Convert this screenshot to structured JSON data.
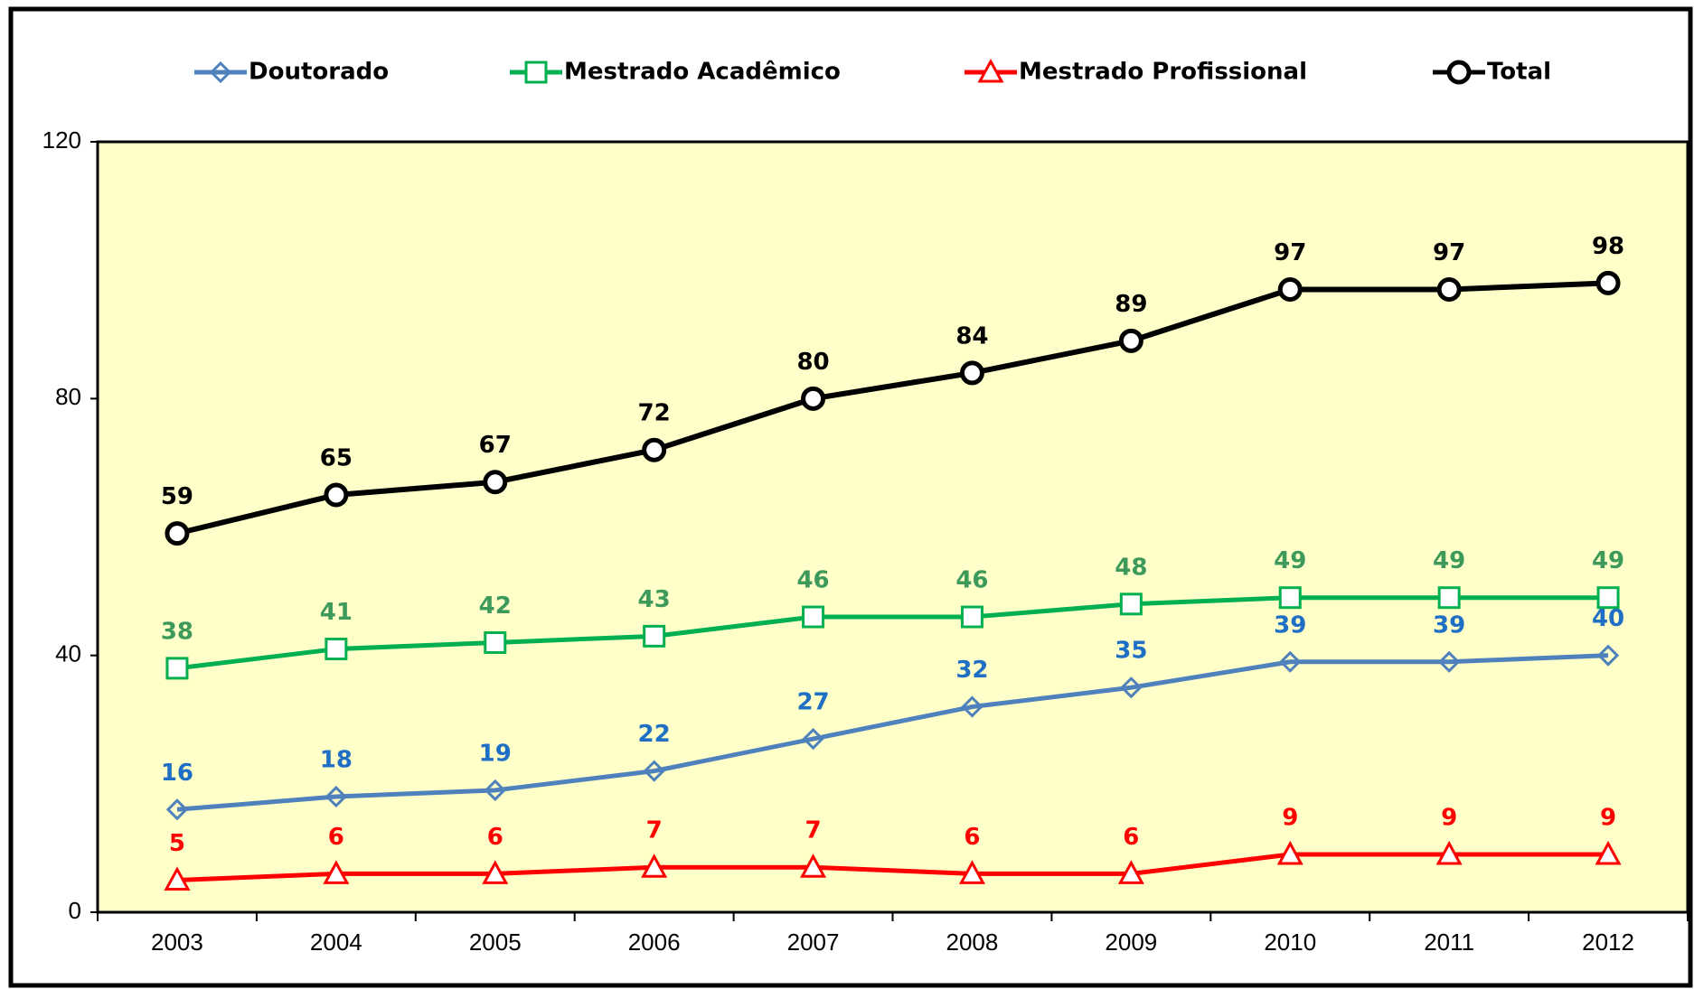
{
  "chart_data": {
    "type": "line",
    "categories": [
      "2003",
      "2004",
      "2005",
      "2006",
      "2007",
      "2008",
      "2009",
      "2010",
      "2011",
      "2012"
    ],
    "series": [
      {
        "name": "Doutorado",
        "color": "#4f81bd",
        "label_color": "#1f6fc5",
        "marker": "diamond",
        "values": [
          16,
          18,
          19,
          22,
          27,
          32,
          35,
          39,
          39,
          40
        ]
      },
      {
        "name": "Mestrado Acadêmico",
        "color": "#00b050",
        "label_color": "#3d9a5b",
        "marker": "square",
        "values": [
          38,
          41,
          42,
          43,
          46,
          46,
          48,
          49,
          49,
          49
        ]
      },
      {
        "name": "Mestrado Profissional",
        "color": "#ff0000",
        "label_color": "#ff0000",
        "marker": "triangle",
        "values": [
          5,
          6,
          6,
          7,
          7,
          6,
          6,
          9,
          9,
          9
        ]
      },
      {
        "name": "Total",
        "color": "#000000",
        "label_color": "#000000",
        "marker": "circle",
        "values": [
          59,
          65,
          67,
          72,
          80,
          84,
          89,
          97,
          97,
          98
        ]
      }
    ],
    "ylim": [
      0,
      120
    ],
    "yticks": [
      0,
      40,
      80,
      120
    ],
    "grid": false,
    "plot_background": "#ffffc9",
    "legend": "top"
  }
}
